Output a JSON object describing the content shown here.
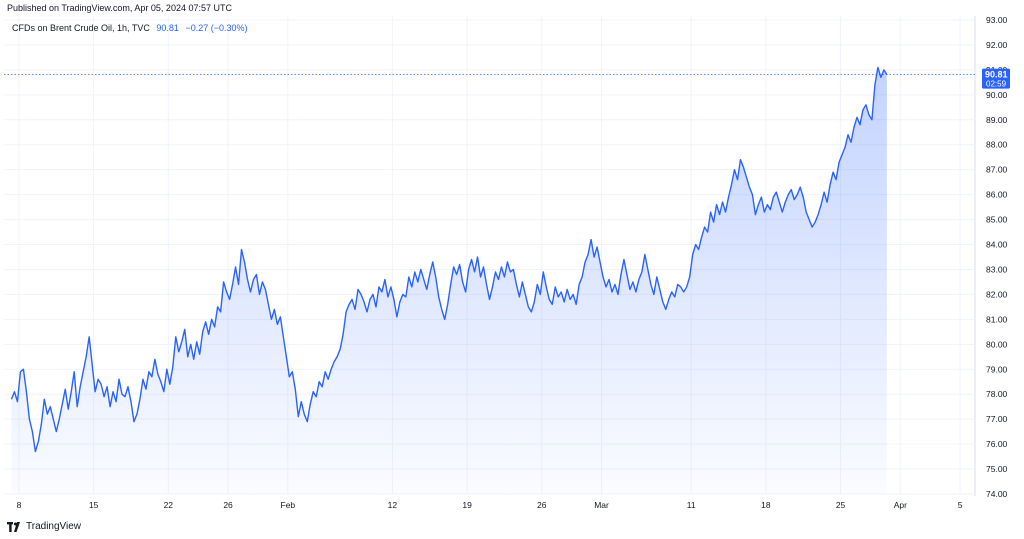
{
  "header": {
    "published": "Published on TradingView.com, Apr 05, 2024 07:57 UTC"
  },
  "legend": {
    "symbol": "CFDs on Brent Crude Oil, 1h, TVC",
    "last": "90.81",
    "change": "−0.27 (−0.30%)"
  },
  "last_price_badge": {
    "price": "90.81",
    "countdown": "02:59"
  },
  "footer": {
    "brand": "TradingView"
  },
  "colors": {
    "line": "#2962ff",
    "badge": "#2962ff",
    "grid": "#f0f3fa",
    "text": "#131722"
  },
  "chart_data": {
    "type": "area",
    "title": "",
    "ylim": [
      74,
      93
    ],
    "y_ticks": [
      "74.00",
      "75.00",
      "76.00",
      "77.00",
      "78.00",
      "79.00",
      "80.00",
      "81.00",
      "82.00",
      "83.00",
      "84.00",
      "85.00",
      "86.00",
      "87.00",
      "88.00",
      "89.00",
      "90.00",
      "91.00",
      "92.00",
      "93.00"
    ],
    "x_labels": [
      {
        "label": "8",
        "t": 0.5
      },
      {
        "label": "15",
        "t": 5.5
      },
      {
        "label": "22",
        "t": 10.5
      },
      {
        "label": "26",
        "t": 14.5
      },
      {
        "label": "Feb",
        "t": 18.5
      },
      {
        "label": "12",
        "t": 25.5
      },
      {
        "label": "19",
        "t": 30.5
      },
      {
        "label": "26",
        "t": 35.5
      },
      {
        "label": "Mar",
        "t": 39.5
      },
      {
        "label": "11",
        "t": 45.5
      },
      {
        "label": "18",
        "t": 50.5
      },
      {
        "label": "25",
        "t": 55.5
      },
      {
        "label": "Apr",
        "t": 59.5
      },
      {
        "label": "5",
        "t": 63.5
      }
    ],
    "x_range": [
      -0.5,
      64.5
    ],
    "series": [
      {
        "points": [
          [
            0,
            77.8
          ],
          [
            0.2,
            78.1
          ],
          [
            0.4,
            77.7
          ],
          [
            0.6,
            78.9
          ],
          [
            0.8,
            79.0
          ],
          [
            1.0,
            78.1
          ],
          [
            1.2,
            77.0
          ],
          [
            1.4,
            76.5
          ],
          [
            1.6,
            75.7
          ],
          [
            1.8,
            76.1
          ],
          [
            2.0,
            76.8
          ],
          [
            2.2,
            77.8
          ],
          [
            2.4,
            77.2
          ],
          [
            2.6,
            77.5
          ],
          [
            2.8,
            77.0
          ],
          [
            3.0,
            76.5
          ],
          [
            3.2,
            77.0
          ],
          [
            3.4,
            77.6
          ],
          [
            3.6,
            78.2
          ],
          [
            3.8,
            77.4
          ],
          [
            4.0,
            78.1
          ],
          [
            4.2,
            78.9
          ],
          [
            4.4,
            77.5
          ],
          [
            4.6,
            78.3
          ],
          [
            4.8,
            78.9
          ],
          [
            5.0,
            79.5
          ],
          [
            5.2,
            80.3
          ],
          [
            5.4,
            79.2
          ],
          [
            5.6,
            78.1
          ],
          [
            5.8,
            78.6
          ],
          [
            6.0,
            78.4
          ],
          [
            6.2,
            77.9
          ],
          [
            6.4,
            78.3
          ],
          [
            6.6,
            77.5
          ],
          [
            6.8,
            78.1
          ],
          [
            7.0,
            77.7
          ],
          [
            7.2,
            78.6
          ],
          [
            7.4,
            78.0
          ],
          [
            7.6,
            77.9
          ],
          [
            7.8,
            78.3
          ],
          [
            8.0,
            77.7
          ],
          [
            8.2,
            76.9
          ],
          [
            8.4,
            77.2
          ],
          [
            8.6,
            77.8
          ],
          [
            8.8,
            78.6
          ],
          [
            9.0,
            78.2
          ],
          [
            9.2,
            78.9
          ],
          [
            9.4,
            78.7
          ],
          [
            9.6,
            79.4
          ],
          [
            9.8,
            78.8
          ],
          [
            10.0,
            78.5
          ],
          [
            10.2,
            78.1
          ],
          [
            10.4,
            79.0
          ],
          [
            10.6,
            78.4
          ],
          [
            10.8,
            79.1
          ],
          [
            11.0,
            80.3
          ],
          [
            11.2,
            79.7
          ],
          [
            11.4,
            80.1
          ],
          [
            11.6,
            80.6
          ],
          [
            11.8,
            79.5
          ],
          [
            12.0,
            80.0
          ],
          [
            12.2,
            79.4
          ],
          [
            12.4,
            80.1
          ],
          [
            12.6,
            79.6
          ],
          [
            12.8,
            80.5
          ],
          [
            13.0,
            80.9
          ],
          [
            13.2,
            80.4
          ],
          [
            13.4,
            81.0
          ],
          [
            13.6,
            80.7
          ],
          [
            13.8,
            81.5
          ],
          [
            14.0,
            81.3
          ],
          [
            14.2,
            82.5
          ],
          [
            14.4,
            82.1
          ],
          [
            14.6,
            81.8
          ],
          [
            14.8,
            82.4
          ],
          [
            15.0,
            83.1
          ],
          [
            15.2,
            82.4
          ],
          [
            15.4,
            83.8
          ],
          [
            15.6,
            83.3
          ],
          [
            15.8,
            82.6
          ],
          [
            16.0,
            82.1
          ],
          [
            16.2,
            82.6
          ],
          [
            16.4,
            82.8
          ],
          [
            16.6,
            82.0
          ],
          [
            16.8,
            82.5
          ],
          [
            17.0,
            82.2
          ],
          [
            17.2,
            81.6
          ],
          [
            17.4,
            81.0
          ],
          [
            17.6,
            81.4
          ],
          [
            17.8,
            80.8
          ],
          [
            18.0,
            81.1
          ],
          [
            18.2,
            80.3
          ],
          [
            18.4,
            79.5
          ],
          [
            18.6,
            78.7
          ],
          [
            18.8,
            78.9
          ],
          [
            19.0,
            78.2
          ],
          [
            19.2,
            77.1
          ],
          [
            19.4,
            77.7
          ],
          [
            19.6,
            77.2
          ],
          [
            19.8,
            76.9
          ],
          [
            20.0,
            77.6
          ],
          [
            20.2,
            78.1
          ],
          [
            20.4,
            77.9
          ],
          [
            20.6,
            78.5
          ],
          [
            20.8,
            78.3
          ],
          [
            21.0,
            78.9
          ],
          [
            21.2,
            78.6
          ],
          [
            21.4,
            79.0
          ],
          [
            21.6,
            79.3
          ],
          [
            21.8,
            79.5
          ],
          [
            22.0,
            79.8
          ],
          [
            22.2,
            80.4
          ],
          [
            22.4,
            81.3
          ],
          [
            22.6,
            81.6
          ],
          [
            22.8,
            81.8
          ],
          [
            23.0,
            81.4
          ],
          [
            23.2,
            82.2
          ],
          [
            23.4,
            82.0
          ],
          [
            23.6,
            81.7
          ],
          [
            23.8,
            81.3
          ],
          [
            24.0,
            81.8
          ],
          [
            24.2,
            82.0
          ],
          [
            24.4,
            81.5
          ],
          [
            24.6,
            82.3
          ],
          [
            24.8,
            82.1
          ],
          [
            25.0,
            82.6
          ],
          [
            25.2,
            81.9
          ],
          [
            25.4,
            82.3
          ],
          [
            25.6,
            81.8
          ],
          [
            25.8,
            81.1
          ],
          [
            26.0,
            81.7
          ],
          [
            26.2,
            82.0
          ],
          [
            26.4,
            81.9
          ],
          [
            26.6,
            82.7
          ],
          [
            26.8,
            82.3
          ],
          [
            27.0,
            82.9
          ],
          [
            27.2,
            82.5
          ],
          [
            27.4,
            83.0
          ],
          [
            27.6,
            82.6
          ],
          [
            27.8,
            82.2
          ],
          [
            28.0,
            82.8
          ],
          [
            28.2,
            83.3
          ],
          [
            28.4,
            82.7
          ],
          [
            28.6,
            81.9
          ],
          [
            28.8,
            81.4
          ],
          [
            29.0,
            81.0
          ],
          [
            29.2,
            81.6
          ],
          [
            29.4,
            82.4
          ],
          [
            29.6,
            83.1
          ],
          [
            29.8,
            82.8
          ],
          [
            30.0,
            83.2
          ],
          [
            30.2,
            82.5
          ],
          [
            30.4,
            82.1
          ],
          [
            30.6,
            83.0
          ],
          [
            30.8,
            83.4
          ],
          [
            31.0,
            82.9
          ],
          [
            31.2,
            83.5
          ],
          [
            31.4,
            82.7
          ],
          [
            31.6,
            83.1
          ],
          [
            31.8,
            82.4
          ],
          [
            32.0,
            81.8
          ],
          [
            32.2,
            82.3
          ],
          [
            32.4,
            82.9
          ],
          [
            32.6,
            82.6
          ],
          [
            32.8,
            83.1
          ],
          [
            33.0,
            82.7
          ],
          [
            33.2,
            83.3
          ],
          [
            33.4,
            82.9
          ],
          [
            33.6,
            83.0
          ],
          [
            33.8,
            82.4
          ],
          [
            34.0,
            81.9
          ],
          [
            34.2,
            82.5
          ],
          [
            34.4,
            82.0
          ],
          [
            34.6,
            81.5
          ],
          [
            34.8,
            81.3
          ],
          [
            35.0,
            81.7
          ],
          [
            35.2,
            82.4
          ],
          [
            35.4,
            82.0
          ],
          [
            35.6,
            82.9
          ],
          [
            35.8,
            82.3
          ],
          [
            36.0,
            81.8
          ],
          [
            36.2,
            81.6
          ],
          [
            36.4,
            82.3
          ],
          [
            36.6,
            81.9
          ],
          [
            36.8,
            82.1
          ],
          [
            37.0,
            81.7
          ],
          [
            37.2,
            82.2
          ],
          [
            37.4,
            81.8
          ],
          [
            37.6,
            82.0
          ],
          [
            37.8,
            81.6
          ],
          [
            38.0,
            82.4
          ],
          [
            38.2,
            82.7
          ],
          [
            38.4,
            83.3
          ],
          [
            38.6,
            83.6
          ],
          [
            38.8,
            84.2
          ],
          [
            39.0,
            83.5
          ],
          [
            39.2,
            83.9
          ],
          [
            39.4,
            83.3
          ],
          [
            39.6,
            82.7
          ],
          [
            39.8,
            82.3
          ],
          [
            40.0,
            82.6
          ],
          [
            40.2,
            82.1
          ],
          [
            40.4,
            82.4
          ],
          [
            40.6,
            82.0
          ],
          [
            40.8,
            82.8
          ],
          [
            41.0,
            83.4
          ],
          [
            41.2,
            82.8
          ],
          [
            41.4,
            82.2
          ],
          [
            41.6,
            82.5
          ],
          [
            41.8,
            82.1
          ],
          [
            42.0,
            82.6
          ],
          [
            42.2,
            82.9
          ],
          [
            42.4,
            83.6
          ],
          [
            42.6,
            83.0
          ],
          [
            42.8,
            82.4
          ],
          [
            43.0,
            82.0
          ],
          [
            43.2,
            82.7
          ],
          [
            43.4,
            82.2
          ],
          [
            43.6,
            81.7
          ],
          [
            43.8,
            81.4
          ],
          [
            44.0,
            81.8
          ],
          [
            44.2,
            82.1
          ],
          [
            44.4,
            81.9
          ],
          [
            44.6,
            82.4
          ],
          [
            44.8,
            82.3
          ],
          [
            45.0,
            82.1
          ],
          [
            45.2,
            82.3
          ],
          [
            45.4,
            82.7
          ],
          [
            45.6,
            83.6
          ],
          [
            45.8,
            84.0
          ],
          [
            46.0,
            83.8
          ],
          [
            46.2,
            84.3
          ],
          [
            46.4,
            84.7
          ],
          [
            46.6,
            84.5
          ],
          [
            46.8,
            85.3
          ],
          [
            47.0,
            84.9
          ],
          [
            47.2,
            85.6
          ],
          [
            47.4,
            85.2
          ],
          [
            47.6,
            85.7
          ],
          [
            47.8,
            85.3
          ],
          [
            48.0,
            85.9
          ],
          [
            48.2,
            86.4
          ],
          [
            48.4,
            87.0
          ],
          [
            48.6,
            86.6
          ],
          [
            48.8,
            87.4
          ],
          [
            49.0,
            87.1
          ],
          [
            49.2,
            86.7
          ],
          [
            49.4,
            86.3
          ],
          [
            49.6,
            86.0
          ],
          [
            49.8,
            85.2
          ],
          [
            50.0,
            85.6
          ],
          [
            50.2,
            85.9
          ],
          [
            50.4,
            85.3
          ],
          [
            50.6,
            85.6
          ],
          [
            50.8,
            85.4
          ],
          [
            51.0,
            85.9
          ],
          [
            51.2,
            86.1
          ],
          [
            51.4,
            85.7
          ],
          [
            51.6,
            85.3
          ],
          [
            51.8,
            85.7
          ],
          [
            52.0,
            86.0
          ],
          [
            52.2,
            86.2
          ],
          [
            52.4,
            85.8
          ],
          [
            52.6,
            86.0
          ],
          [
            52.8,
            86.3
          ],
          [
            53.0,
            85.9
          ],
          [
            53.2,
            85.3
          ],
          [
            53.4,
            85.0
          ],
          [
            53.6,
            84.7
          ],
          [
            53.8,
            84.9
          ],
          [
            54.0,
            85.2
          ],
          [
            54.2,
            85.6
          ],
          [
            54.4,
            86.1
          ],
          [
            54.6,
            85.7
          ],
          [
            54.8,
            86.4
          ],
          [
            55.0,
            86.9
          ],
          [
            55.2,
            86.6
          ],
          [
            55.4,
            87.3
          ],
          [
            55.6,
            87.6
          ],
          [
            55.8,
            87.9
          ],
          [
            56.0,
            88.4
          ],
          [
            56.2,
            88.1
          ],
          [
            56.4,
            88.7
          ],
          [
            56.6,
            89.1
          ],
          [
            56.8,
            88.8
          ],
          [
            57.0,
            89.4
          ],
          [
            57.2,
            89.6
          ],
          [
            57.4,
            89.2
          ],
          [
            57.6,
            89.0
          ],
          [
            57.8,
            90.4
          ],
          [
            58.0,
            91.1
          ],
          [
            58.2,
            90.7
          ],
          [
            58.4,
            91.0
          ],
          [
            58.6,
            90.81
          ]
        ]
      }
    ]
  }
}
